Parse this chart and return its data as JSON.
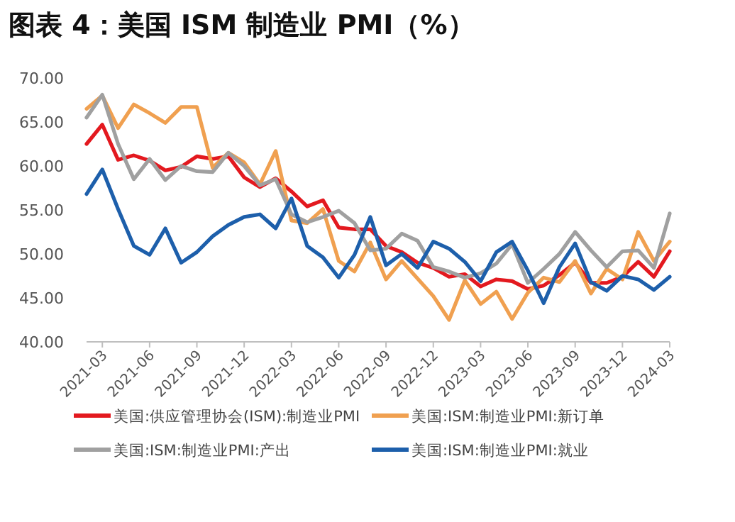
{
  "chart_data": {
    "type": "line",
    "title": "图表 4：美国 ISM 制造业 PMI（%）",
    "x": [
      "2021-02",
      "2021-03",
      "2021-04",
      "2021-05",
      "2021-06",
      "2021-07",
      "2021-08",
      "2021-09",
      "2021-10",
      "2021-11",
      "2021-12",
      "2022-01",
      "2022-02",
      "2022-03",
      "2022-04",
      "2022-05",
      "2022-06",
      "2022-07",
      "2022-08",
      "2022-09",
      "2022-10",
      "2022-11",
      "2022-12",
      "2023-01",
      "2023-02",
      "2023-03",
      "2023-04",
      "2023-05",
      "2023-06",
      "2023-07",
      "2023-08",
      "2023-09",
      "2023-10",
      "2023-11",
      "2023-12",
      "2024-01",
      "2024-02",
      "2024-03"
    ],
    "series": [
      {
        "name": "美国:供应管理协会(ISM):制造业PMI",
        "color": "#e3191f",
        "values": [
          62.5,
          64.7,
          60.7,
          61.2,
          60.6,
          59.5,
          59.9,
          61.1,
          60.8,
          61.1,
          58.7,
          57.6,
          58.6,
          57.1,
          55.4,
          56.1,
          53.0,
          52.8,
          52.8,
          50.9,
          50.2,
          49.0,
          48.4,
          47.4,
          47.7,
          46.3,
          47.1,
          46.9,
          46.0,
          46.4,
          47.6,
          49.0,
          46.7,
          46.7,
          47.4,
          49.1,
          47.4,
          50.3
        ]
      },
      {
        "name": "美国:ISM:制造业PMI:新订单",
        "color": "#f0a050",
        "values": [
          66.5,
          68.0,
          64.3,
          67.0,
          66.0,
          64.9,
          66.7,
          66.7,
          59.8,
          61.5,
          60.4,
          57.9,
          61.7,
          53.8,
          53.5,
          55.1,
          49.2,
          48.0,
          51.3,
          47.1,
          49.2,
          47.2,
          45.2,
          42.5,
          47.0,
          44.3,
          45.7,
          42.6,
          45.6,
          47.3,
          46.8,
          49.2,
          45.5,
          48.3,
          47.1,
          52.5,
          49.2,
          51.4
        ]
      },
      {
        "name": "美国:ISM:制造业PMI:产出",
        "color": "#a0a0a0",
        "values": [
          65.5,
          68.1,
          62.5,
          58.5,
          60.8,
          58.4,
          60.0,
          59.4,
          59.3,
          61.5,
          60.0,
          57.8,
          58.5,
          54.5,
          53.6,
          54.2,
          54.9,
          53.5,
          50.4,
          50.6,
          52.3,
          51.5,
          48.5,
          48.0,
          47.3,
          47.8,
          48.9,
          51.1,
          46.7,
          48.3,
          50.0,
          52.5,
          50.4,
          48.5,
          50.3,
          50.4,
          48.4,
          54.6
        ]
      },
      {
        "name": "美国:ISM:制造业PMI:就业",
        "color": "#1d5fab",
        "values": [
          56.8,
          59.6,
          55.1,
          50.9,
          49.9,
          52.9,
          49.0,
          50.2,
          52.0,
          53.3,
          54.2,
          54.5,
          52.9,
          56.3,
          50.9,
          49.6,
          47.3,
          49.9,
          54.2,
          48.7,
          50.0,
          48.4,
          51.4,
          50.6,
          49.1,
          46.9,
          50.2,
          51.4,
          48.1,
          44.4,
          48.5,
          51.2,
          46.8,
          45.8,
          47.5,
          47.1,
          45.9,
          47.4
        ]
      }
    ],
    "xlim": [
      "2021-02",
      "2024-03"
    ],
    "xticks": [
      "2021-03",
      "2021-06",
      "2021-09",
      "2021-12",
      "2022-03",
      "2022-06",
      "2022-09",
      "2022-12",
      "2023-03",
      "2023-06",
      "2023-09",
      "2023-12",
      "2024-03"
    ],
    "ylim": [
      40,
      70
    ],
    "yticks": [
      {
        "value": 40,
        "label": "40.00"
      },
      {
        "value": 45,
        "label": "45.00"
      },
      {
        "value": 50,
        "label": "50.00"
      },
      {
        "value": 55,
        "label": "55.00"
      },
      {
        "value": 60,
        "label": "60.00"
      },
      {
        "value": 65,
        "label": "65.00"
      },
      {
        "value": 70,
        "label": "70.00"
      }
    ],
    "grid": false,
    "legend": "bottom",
    "marker": "none",
    "line_style": "solid"
  }
}
